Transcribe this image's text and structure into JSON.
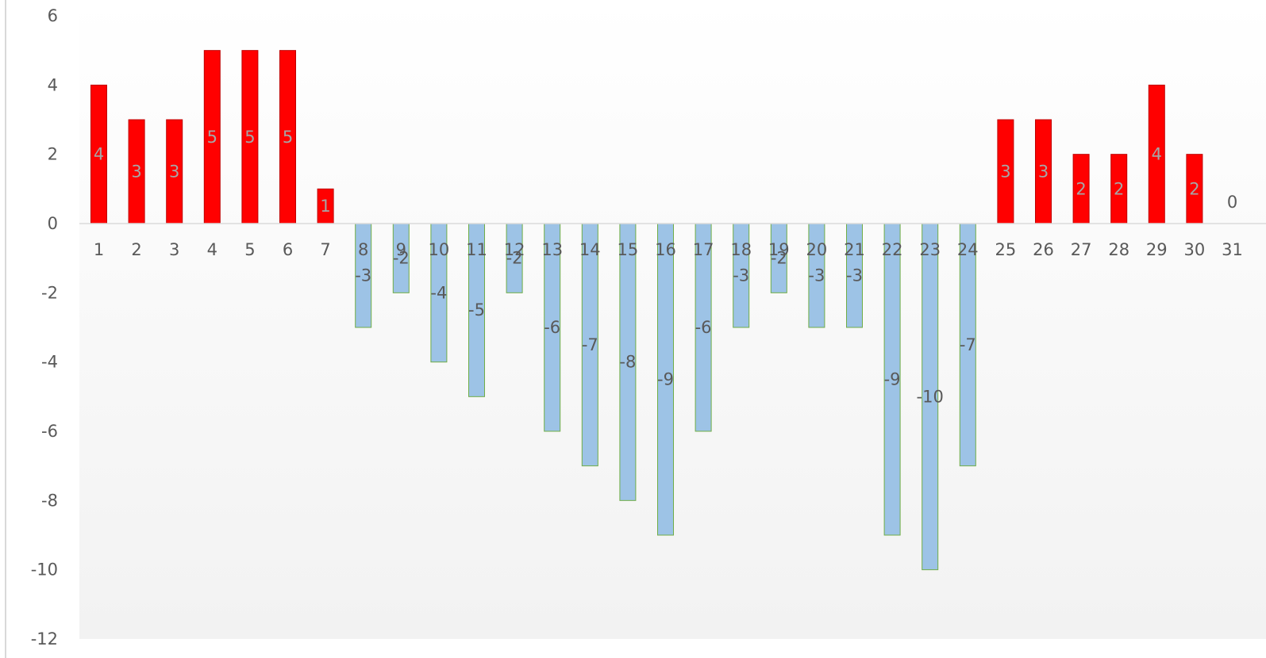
{
  "chart_data": {
    "type": "bar",
    "title": "",
    "xlabel": "",
    "ylabel": "",
    "categories": [
      "1",
      "2",
      "3",
      "4",
      "5",
      "6",
      "7",
      "8",
      "9",
      "10",
      "11",
      "12",
      "13",
      "14",
      "15",
      "16",
      "17",
      "18",
      "19",
      "20",
      "21",
      "22",
      "23",
      "24",
      "25",
      "26",
      "27",
      "28",
      "29",
      "30",
      "31"
    ],
    "values": [
      4,
      3,
      3,
      5,
      5,
      5,
      1,
      -3,
      -2,
      -4,
      -5,
      -2,
      -6,
      -7,
      -8,
      -9,
      -6,
      -3,
      -2,
      -3,
      -3,
      -9,
      -10,
      -7,
      3,
      3,
      2,
      2,
      4,
      2,
      0
    ],
    "ylim": [
      -12,
      6
    ],
    "yticks": [
      6,
      4,
      2,
      0,
      -2,
      -4,
      -6,
      -8,
      -10,
      -12
    ],
    "grid": false,
    "legend": "none",
    "colors": {
      "positive_fill": "#ff0000",
      "positive_stroke": "#c00000",
      "negative_fill": "#9dc3e6",
      "negative_stroke": "#70ad47",
      "axis_line": "#d9d9d9",
      "tick_text": "#595959",
      "positive_label": "#a6a6a6",
      "negative_label": "#595959",
      "plot_bg_top": "#ffffff",
      "plot_bg_bottom": "#f2f2f2"
    }
  }
}
